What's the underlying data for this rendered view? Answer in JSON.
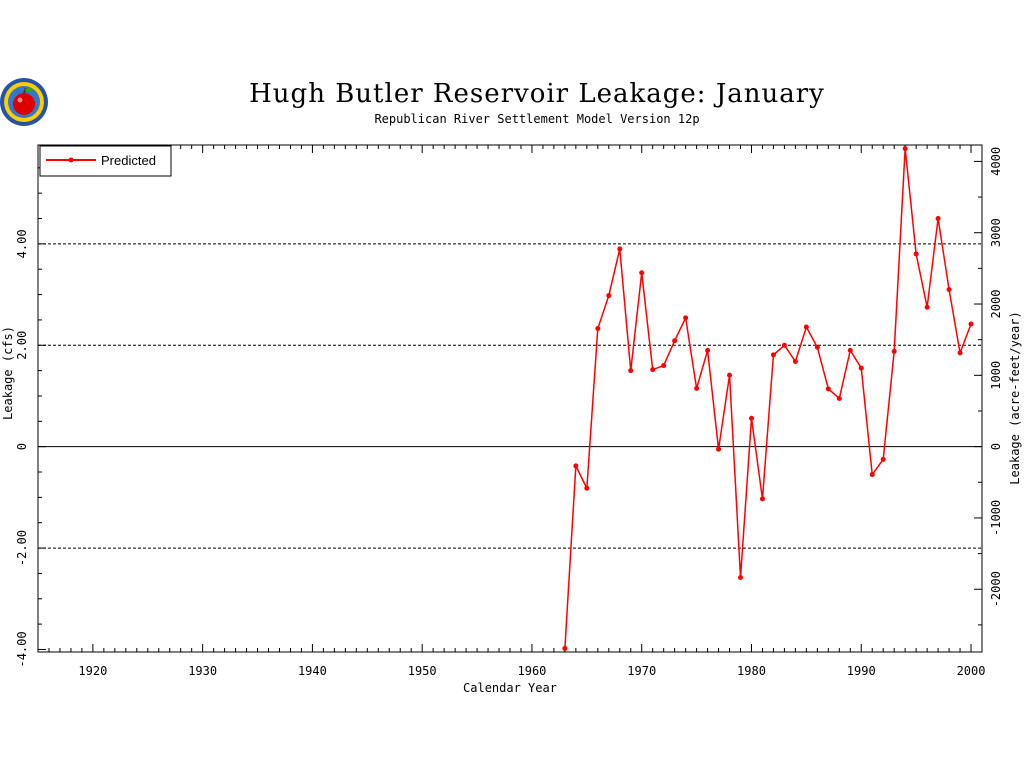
{
  "chart_data": {
    "type": "line",
    "title": "Hugh Butler Reservoir Leakage: January",
    "subtitle": "Republican River Settlement Model Version 12p",
    "xlabel": "Calendar Year",
    "ylabel": "Leakage (cfs)",
    "y2label": "Leakage (acre-feet/year)",
    "xlim": [
      1915,
      2001
    ],
    "ylim": [
      -4.05,
      5.95
    ],
    "y2lim": [
      -2880,
      4230
    ],
    "x_ticks": [
      1920,
      1930,
      1940,
      1950,
      1960,
      1970,
      1980,
      1990,
      2000
    ],
    "x_tick_labels": [
      "1920",
      "1930",
      "1940",
      "1950",
      "1960",
      "1970",
      "1980",
      "1990",
      "2000"
    ],
    "y_ticks": [
      -4,
      -2,
      0,
      2,
      4
    ],
    "y_tick_labels": [
      "-4.00",
      "-2.00",
      "0",
      "2.00",
      "4.00"
    ],
    "y2_ticks": [
      -2000,
      -1000,
      0,
      1000,
      2000,
      3000,
      4000
    ],
    "y2_tick_labels": [
      "-2000",
      "-1000",
      "0",
      "1000",
      "2000",
      "3000",
      "4000"
    ],
    "grid_dashed_y": [
      -2,
      2,
      4
    ],
    "zero_line": true,
    "legend_position": "top-left",
    "colors": {
      "series": "#ff0000",
      "axis": "#000000"
    },
    "series": [
      {
        "name": "Predicted",
        "x": [
          1963,
          1964,
          1965,
          1966,
          1967,
          1968,
          1969,
          1970,
          1971,
          1972,
          1973,
          1974,
          1975,
          1976,
          1977,
          1978,
          1979,
          1980,
          1981,
          1982,
          1983,
          1984,
          1985,
          1986,
          1987,
          1988,
          1989,
          1990,
          1991,
          1992,
          1993,
          1994,
          1995,
          1996,
          1997,
          1998,
          1999,
          2000
        ],
        "values": [
          -3.98,
          -0.38,
          -0.82,
          2.33,
          2.98,
          3.9,
          1.5,
          3.43,
          1.52,
          1.6,
          2.09,
          2.54,
          1.15,
          1.9,
          -0.05,
          1.41,
          -2.58,
          0.56,
          -1.03,
          1.81,
          2.0,
          1.68,
          2.36,
          1.96,
          1.14,
          0.95,
          1.9,
          1.55,
          -0.55,
          -0.25,
          1.88,
          5.88,
          3.8,
          2.75,
          4.5,
          3.1,
          1.85,
          2.42
        ]
      }
    ]
  }
}
